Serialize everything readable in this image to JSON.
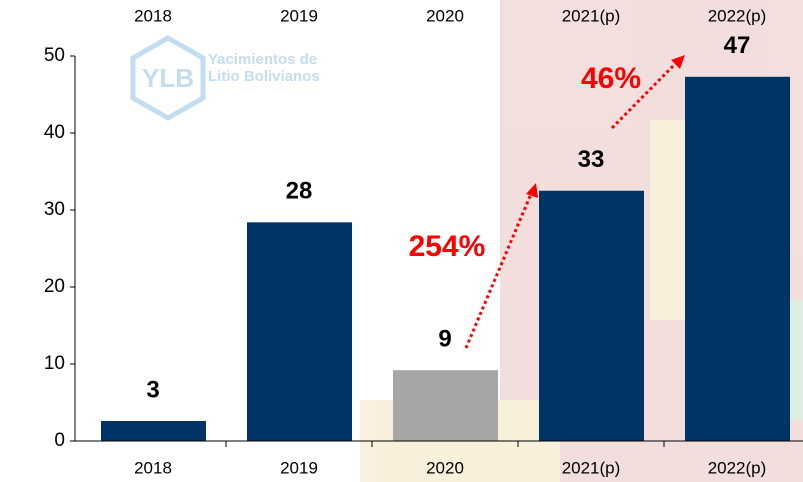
{
  "chart_data": {
    "type": "bar",
    "categories": [
      "2018",
      "2019",
      "2020",
      "2021(p)",
      "2022(p)"
    ],
    "values": [
      2.6,
      28.4,
      9.2,
      32.5,
      47.3
    ],
    "value_labels": [
      "3",
      "28",
      "9",
      "33",
      "47"
    ],
    "colors": [
      "#003366",
      "#003366",
      "#a6a6a6",
      "#003366",
      "#003366"
    ],
    "ylim": [
      0,
      50
    ],
    "yticks": [
      0,
      10,
      20,
      30,
      40,
      50
    ],
    "annotations": [
      "254%",
      "46%"
    ],
    "annotation_color": "#ff0000"
  },
  "logo": {
    "mark": "YLB",
    "lines": [
      "Yacimientos de",
      "Litio Bolivianos"
    ]
  }
}
